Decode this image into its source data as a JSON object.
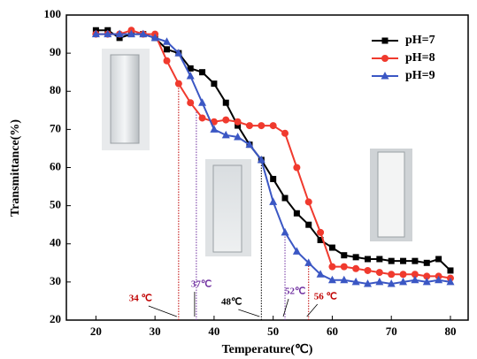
{
  "chart_data": {
    "type": "line",
    "x_label": "Temperature(℃)",
    "y_label": "Transmittance(%)",
    "x": [
      20,
      22,
      24,
      26,
      28,
      30,
      32,
      34,
      36,
      38,
      40,
      42,
      44,
      46,
      48,
      50,
      52,
      54,
      56,
      58,
      60,
      62,
      64,
      66,
      68,
      70,
      72,
      74,
      76,
      78,
      80
    ],
    "series": [
      {
        "name": "pH=7",
        "color": "#000000",
        "marker": "square",
        "values": [
          96,
          96,
          94,
          95,
          95,
          94,
          91,
          90,
          86,
          85,
          82,
          77,
          71,
          66,
          62,
          57,
          52,
          48,
          45,
          41,
          39,
          37,
          36.5,
          36,
          36,
          35.5,
          35.5,
          35.5,
          35,
          36,
          33
        ]
      },
      {
        "name": "pH=8",
        "color": "#f03a2e",
        "marker": "circle",
        "values": [
          95,
          95,
          95,
          96,
          95,
          95,
          88,
          82,
          77,
          73,
          72,
          72.5,
          72,
          71,
          71,
          71,
          69,
          60,
          51,
          43,
          34,
          34,
          33.5,
          33,
          32.5,
          32,
          32,
          32,
          31.5,
          31.5,
          31
        ]
      },
      {
        "name": "pH=9",
        "color": "#3b57c4",
        "marker": "triangle",
        "values": [
          95,
          95,
          95,
          95,
          95,
          94,
          93,
          90,
          84,
          77,
          70,
          68.5,
          68,
          66,
          62,
          51,
          43,
          38,
          35,
          32,
          30.5,
          30.5,
          30,
          29.5,
          30,
          29.5,
          30,
          30.5,
          30,
          30.5,
          30
        ]
      }
    ],
    "annotations": [
      {
        "x": 34,
        "label": "34 ℃",
        "color": "#c00000"
      },
      {
        "x": 37,
        "label": "37℃",
        "color": "#7030a0"
      },
      {
        "x": 48,
        "label": "48℃",
        "color": "#000000"
      },
      {
        "x": 52,
        "label": "52℃",
        "color": "#7030a0"
      },
      {
        "x": 56,
        "label": "56 ℃",
        "color": "#c00000"
      }
    ],
    "xlim": [
      15,
      83
    ],
    "xticks": [
      20,
      30,
      40,
      50,
      60,
      70,
      80
    ],
    "ylim": [
      20,
      100
    ],
    "yticks": [
      20,
      30,
      40,
      50,
      60,
      70,
      80,
      90,
      100
    ],
    "grid": false,
    "legend": "upper right"
  }
}
